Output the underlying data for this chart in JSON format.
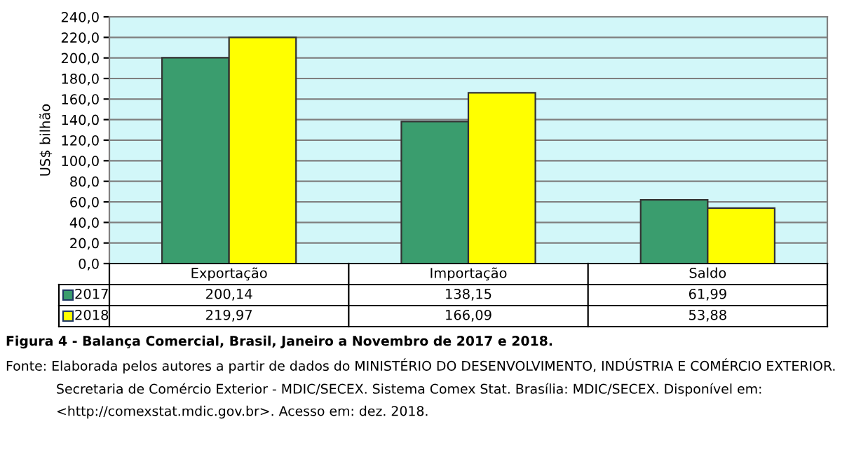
{
  "chart_data": {
    "type": "bar",
    "ylabel": "US$ bilhão",
    "categories": [
      "Exportação",
      "Importação",
      "Saldo"
    ],
    "series": [
      {
        "name": "2017",
        "color": "#3a9d6e",
        "values": [
          200.14,
          138.15,
          61.99
        ],
        "value_labels": [
          "200,14",
          "138,15",
          "61,99"
        ]
      },
      {
        "name": "2018",
        "color": "#ffff00",
        "values": [
          219.97,
          166.09,
          53.88
        ],
        "value_labels": [
          "219,97",
          "166,09",
          "53,88"
        ]
      }
    ],
    "ylim": [
      0,
      240
    ],
    "yticks": [
      {
        "value": 0,
        "label": "0,0"
      },
      {
        "value": 20,
        "label": "20,0"
      },
      {
        "value": 40,
        "label": "40,0"
      },
      {
        "value": 60,
        "label": "60,0"
      },
      {
        "value": 80,
        "label": "80,0"
      },
      {
        "value": 100,
        "label": "100,0"
      },
      {
        "value": 120,
        "label": "120,0"
      },
      {
        "value": 140,
        "label": "140,0"
      },
      {
        "value": 160,
        "label": "160,0"
      },
      {
        "value": 180,
        "label": "180,0"
      },
      {
        "value": 200,
        "label": "200,0"
      },
      {
        "value": 220,
        "label": "220,0"
      },
      {
        "value": 240,
        "label": "240,0"
      }
    ],
    "grid": "y",
    "legend": "bottom",
    "annotations": [
      "Figura 4 - Balança Comercial, Brasil, Janeiro a Novembro de 2017 e 2018.",
      "Fonte: Elaborada pelos autores a partir de dados do MINISTÉRIO DO DESENVOLVIMENTO, INDÚSTRIA E COMÉRCIO EXTERIOR.",
      "Secretaria de Comércio Exterior - MDIC/SECEX. Sistema Comex Stat. Brasília: MDIC/SECEX. Disponível em:",
      "<http://comexstat.mdic.gov.br>. Acesso em: dez. 2018."
    ]
  }
}
